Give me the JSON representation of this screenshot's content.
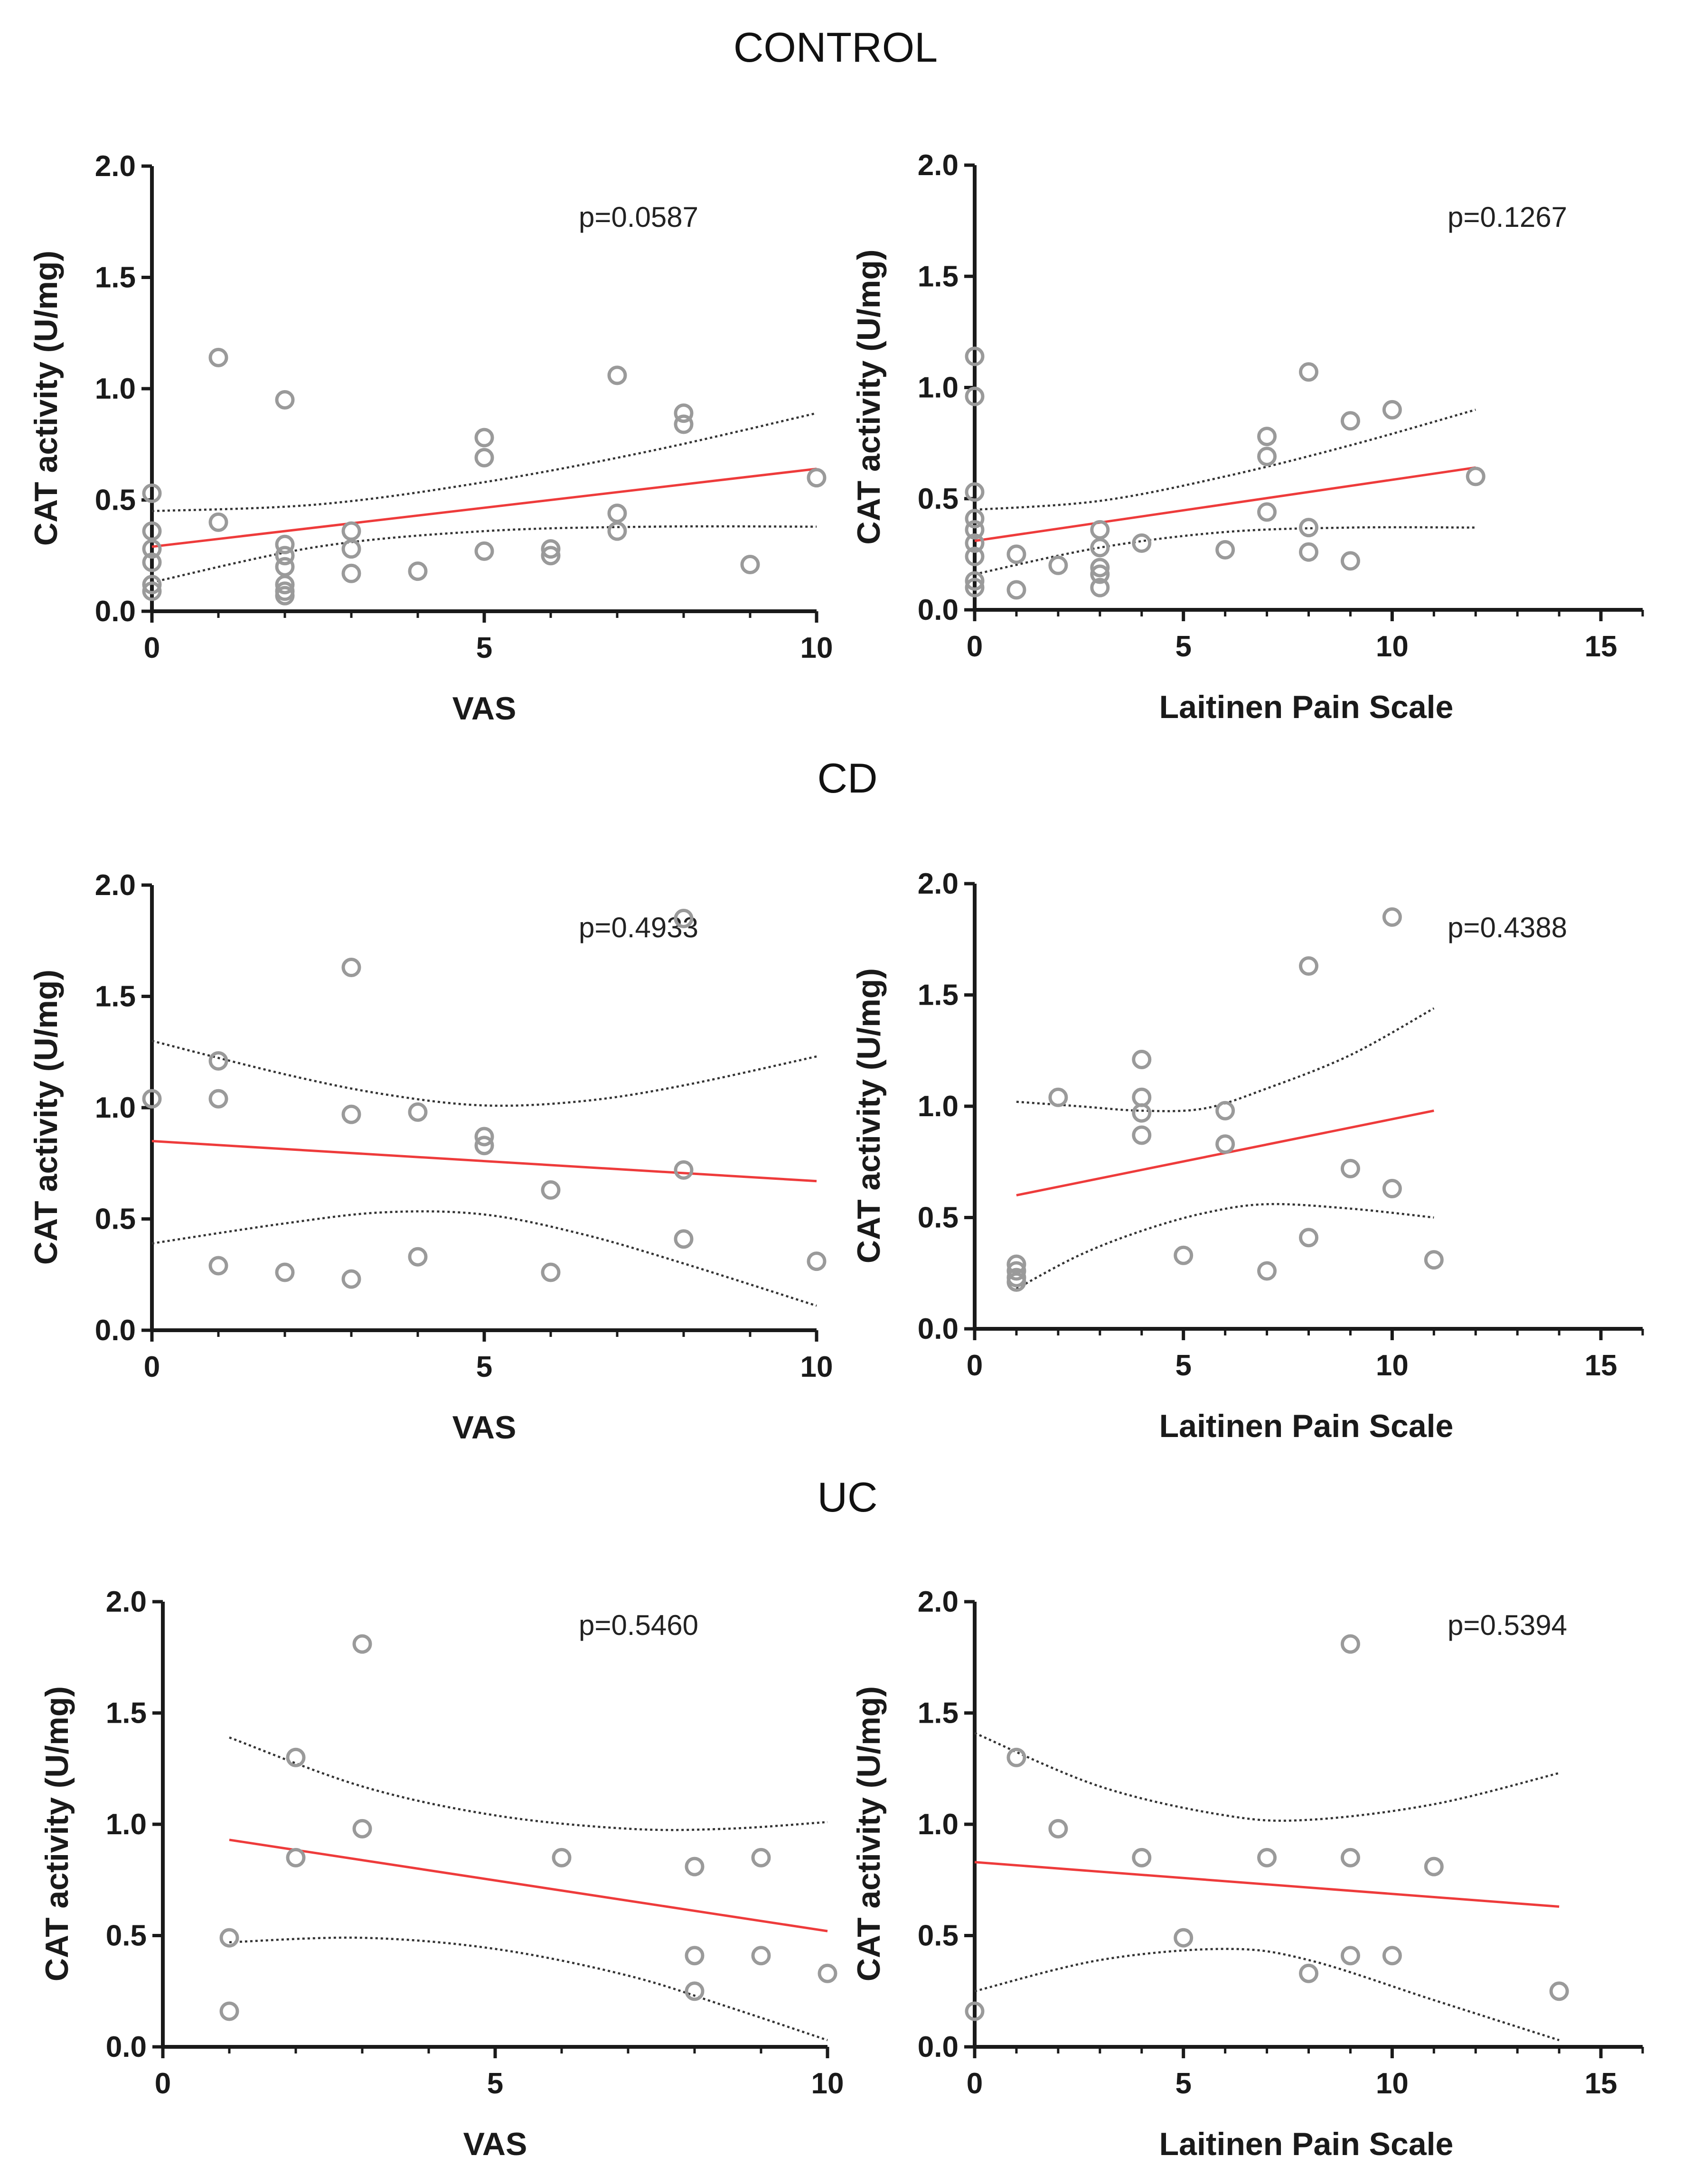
{
  "group_titles": [
    "CONTROL",
    "CD",
    "UC"
  ],
  "chart_data": [
    {
      "type": "scatter",
      "group": "CONTROL",
      "xlabel": "VAS",
      "ylabel": "CAT activity (U/mg)",
      "xlim": [
        0,
        10
      ],
      "xticks": [
        0,
        5,
        10
      ],
      "xtick_labels": [
        "0",
        "5",
        "10"
      ],
      "xminor": 1,
      "ylim": [
        0,
        2
      ],
      "yticks": [
        0,
        0.5,
        1,
        1.5,
        2
      ],
      "ytick_labels": [
        "0.0",
        "0.5",
        "1.0",
        "1.5",
        "2.0"
      ],
      "annotation": "p=0.0587",
      "x": [
        0,
        0,
        0,
        0,
        0,
        0,
        1,
        1,
        2,
        2,
        2,
        2,
        2,
        2,
        2,
        3,
        3,
        3,
        4,
        5,
        5,
        5,
        6,
        6,
        7,
        7,
        7,
        8,
        8,
        9,
        10
      ],
      "y": [
        0.53,
        0.36,
        0.28,
        0.22,
        0.12,
        0.09,
        1.14,
        0.4,
        0.95,
        0.3,
        0.25,
        0.2,
        0.12,
        0.09,
        0.07,
        0.36,
        0.28,
        0.17,
        0.18,
        0.78,
        0.69,
        0.27,
        0.28,
        0.25,
        1.06,
        0.44,
        0.36,
        0.89,
        0.84,
        0.21,
        0.6
      ],
      "fit": {
        "x0": 0,
        "x1": 10,
        "y0": 0.29,
        "y1": 0.64
      },
      "ci_upper": [
        [
          0,
          0.45
        ],
        [
          2.5,
          0.48
        ],
        [
          5,
          0.58
        ],
        [
          7.5,
          0.72
        ],
        [
          10,
          0.89
        ]
      ],
      "ci_lower": [
        [
          0,
          0.13
        ],
        [
          2.5,
          0.29
        ],
        [
          5,
          0.36
        ],
        [
          7.5,
          0.38
        ],
        [
          10,
          0.38
        ]
      ]
    },
    {
      "type": "scatter",
      "group": "CONTROL",
      "xlabel": "Laitinen Pain Scale",
      "ylabel": "CAT activity (U/mg)",
      "xlim": [
        0,
        16
      ],
      "xticks": [
        0,
        5,
        10,
        15
      ],
      "xtick_labels": [
        "0",
        "5",
        "10",
        "15"
      ],
      "xminor": 1,
      "ylim": [
        0,
        2
      ],
      "yticks": [
        0,
        0.5,
        1,
        1.5,
        2
      ],
      "ytick_labels": [
        "0.0",
        "0.5",
        "1.0",
        "1.5",
        "2.0"
      ],
      "annotation": "p=0.1267",
      "x": [
        0,
        0,
        0,
        0,
        0,
        0,
        0,
        0,
        0,
        1,
        1,
        2,
        3,
        3,
        3,
        3,
        3,
        4,
        6,
        7,
        7,
        7,
        8,
        8,
        8,
        9,
        9,
        10,
        12
      ],
      "y": [
        1.14,
        0.96,
        0.53,
        0.41,
        0.36,
        0.3,
        0.24,
        0.13,
        0.1,
        0.25,
        0.09,
        0.2,
        0.36,
        0.28,
        0.19,
        0.16,
        0.1,
        0.3,
        0.27,
        0.78,
        0.69,
        0.44,
        1.07,
        0.37,
        0.26,
        0.85,
        0.22,
        0.9,
        0.6
      ],
      "fit": {
        "x0": 0,
        "x1": 12,
        "y0": 0.31,
        "y1": 0.64
      },
      "ci_upper": [
        [
          0,
          0.45
        ],
        [
          3,
          0.49
        ],
        [
          6,
          0.6
        ],
        [
          9,
          0.74
        ],
        [
          12,
          0.9
        ]
      ],
      "ci_lower": [
        [
          0,
          0.16
        ],
        [
          3,
          0.28
        ],
        [
          6,
          0.35
        ],
        [
          9,
          0.37
        ],
        [
          12,
          0.37
        ]
      ]
    },
    {
      "type": "scatter",
      "group": "CD",
      "xlabel": "VAS",
      "ylabel": "CAT activity (U/mg)",
      "xlim": [
        0,
        10
      ],
      "xticks": [
        0,
        5,
        10
      ],
      "xtick_labels": [
        "0",
        "5",
        "10"
      ],
      "xminor": 1,
      "ylim": [
        0,
        2
      ],
      "yticks": [
        0,
        0.5,
        1,
        1.5,
        2
      ],
      "ytick_labels": [
        "0.0",
        "0.5",
        "1.0",
        "1.5",
        "2.0"
      ],
      "annotation": "p=0.4933",
      "x": [
        0,
        1,
        1,
        1,
        2,
        3,
        3,
        3,
        4,
        4,
        5,
        5,
        6,
        6,
        8,
        8,
        8,
        10
      ],
      "y": [
        1.04,
        1.21,
        1.04,
        0.29,
        0.26,
        1.63,
        0.97,
        0.23,
        0.98,
        0.33,
        0.87,
        0.83,
        0.63,
        0.26,
        1.85,
        0.72,
        0.41,
        0.31
      ],
      "fit": {
        "x0": 0,
        "x1": 10,
        "y0": 0.85,
        "y1": 0.67
      },
      "ci_upper": [
        [
          0,
          1.3
        ],
        [
          2,
          1.15
        ],
        [
          3.5,
          1.06
        ],
        [
          5,
          1.01
        ],
        [
          6.5,
          1.03
        ],
        [
          8,
          1.1
        ],
        [
          10,
          1.23
        ]
      ],
      "ci_lower": [
        [
          0,
          0.39
        ],
        [
          2,
          0.48
        ],
        [
          3.5,
          0.53
        ],
        [
          5,
          0.52
        ],
        [
          6.5,
          0.43
        ],
        [
          8,
          0.3
        ],
        [
          10,
          0.11
        ]
      ]
    },
    {
      "type": "scatter",
      "group": "CD",
      "xlabel": "Laitinen Pain Scale",
      "ylabel": "CAT activity (U/mg)",
      "xlim": [
        0,
        16
      ],
      "xticks": [
        0,
        5,
        10,
        15
      ],
      "xtick_labels": [
        "0",
        "5",
        "10",
        "15"
      ],
      "xminor": 1,
      "ylim": [
        0,
        2
      ],
      "yticks": [
        0,
        0.5,
        1,
        1.5,
        2
      ],
      "ytick_labels": [
        "0.0",
        "0.5",
        "1.0",
        "1.5",
        "2.0"
      ],
      "annotation": "p=0.4388",
      "x": [
        1,
        1,
        1,
        1,
        2,
        4,
        4,
        4,
        4,
        5,
        6,
        6,
        7,
        8,
        8,
        9,
        10,
        10,
        11
      ],
      "y": [
        0.29,
        0.26,
        0.23,
        0.21,
        1.04,
        1.21,
        1.04,
        0.97,
        0.87,
        0.33,
        0.98,
        0.83,
        0.26,
        1.63,
        0.41,
        0.72,
        1.85,
        0.63,
        0.31
      ],
      "fit": {
        "x0": 1,
        "x1": 11,
        "y0": 0.6,
        "y1": 0.98
      },
      "ci_upper": [
        [
          1,
          1.02
        ],
        [
          2.5,
          1.0
        ],
        [
          4,
          0.98
        ],
        [
          5.5,
          0.99
        ],
        [
          7,
          1.08
        ],
        [
          9,
          1.23
        ],
        [
          11,
          1.44
        ]
      ],
      "ci_lower": [
        [
          1,
          0.18
        ],
        [
          2.5,
          0.33
        ],
        [
          4,
          0.44
        ],
        [
          5.5,
          0.52
        ],
        [
          7,
          0.56
        ],
        [
          9,
          0.54
        ],
        [
          11,
          0.5
        ]
      ]
    },
    {
      "type": "scatter",
      "group": "UC",
      "xlabel": "VAS",
      "ylabel": "CAT activity (U/mg)",
      "xlim": [
        0,
        10
      ],
      "xticks": [
        0,
        5,
        10
      ],
      "xtick_labels": [
        "0",
        "5",
        "10"
      ],
      "xminor": 1,
      "ylim": [
        0,
        2
      ],
      "yticks": [
        0,
        0.5,
        1,
        1.5,
        2
      ],
      "ytick_labels": [
        "0.0",
        "0.5",
        "1.0",
        "1.5",
        "2.0"
      ],
      "annotation": "p=0.5460",
      "x": [
        1,
        1,
        2,
        2,
        3,
        3,
        6,
        8,
        8,
        8,
        9,
        9,
        10
      ],
      "y": [
        0.49,
        0.16,
        1.3,
        0.85,
        1.81,
        0.98,
        0.85,
        0.81,
        0.41,
        0.25,
        0.85,
        0.41,
        0.33
      ],
      "fit": {
        "x0": 1,
        "x1": 10,
        "y0": 0.93,
        "y1": 0.52
      },
      "ci_upper": [
        [
          1,
          1.39
        ],
        [
          3,
          1.17
        ],
        [
          5,
          1.04
        ],
        [
          7,
          0.98
        ],
        [
          8.5,
          0.98
        ],
        [
          10,
          1.01
        ]
      ],
      "ci_lower": [
        [
          1,
          0.47
        ],
        [
          3,
          0.49
        ],
        [
          5,
          0.44
        ],
        [
          7,
          0.32
        ],
        [
          8.5,
          0.18
        ],
        [
          10,
          0.03
        ]
      ]
    },
    {
      "type": "scatter",
      "group": "UC",
      "xlabel": "Laitinen Pain Scale",
      "ylabel": "CAT activity (U/mg)",
      "xlim": [
        0,
        16
      ],
      "xticks": [
        0,
        5,
        10,
        15
      ],
      "xtick_labels": [
        "0",
        "5",
        "10",
        "15"
      ],
      "xminor": 1,
      "ylim": [
        0,
        2
      ],
      "yticks": [
        0,
        0.5,
        1,
        1.5,
        2
      ],
      "ytick_labels": [
        "0.0",
        "0.5",
        "1.0",
        "1.5",
        "2.0"
      ],
      "annotation": "p=0.5394",
      "x": [
        0,
        1,
        2,
        4,
        5,
        7,
        8,
        9,
        9,
        9,
        10,
        11,
        14
      ],
      "y": [
        0.16,
        1.3,
        0.98,
        0.85,
        0.49,
        0.85,
        0.33,
        1.81,
        0.85,
        0.41,
        0.41,
        0.81,
        0.25
      ],
      "fit": {
        "x0": 0,
        "x1": 14,
        "y0": 0.83,
        "y1": 0.63
      },
      "ci_upper": [
        [
          0,
          1.41
        ],
        [
          3,
          1.17
        ],
        [
          6,
          1.04
        ],
        [
          8,
          1.02
        ],
        [
          11,
          1.09
        ],
        [
          14,
          1.23
        ]
      ],
      "ci_lower": [
        [
          0,
          0.25
        ],
        [
          3,
          0.39
        ],
        [
          6,
          0.44
        ],
        [
          8,
          0.39
        ],
        [
          11,
          0.21
        ],
        [
          14,
          0.03
        ]
      ]
    }
  ]
}
